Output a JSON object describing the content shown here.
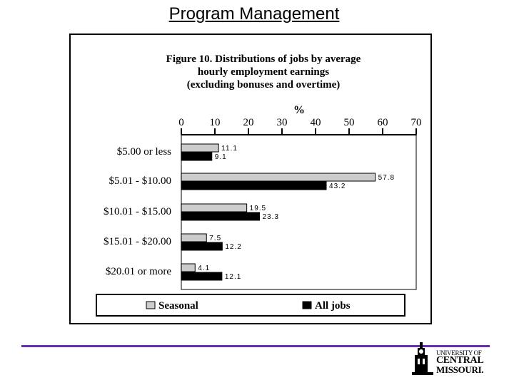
{
  "slide": {
    "title": "Program Management"
  },
  "chart_data": {
    "type": "bar",
    "orientation": "horizontal",
    "title_lines": [
      "Figure 10. Distributions of jobs by average",
      "hourly employment earnings",
      "(excluding bonuses and overtime)"
    ],
    "axis_label": "%",
    "xlim": [
      0,
      70
    ],
    "x_ticks": [
      "0",
      "10",
      "20",
      "30",
      "40",
      "50",
      "60",
      "70"
    ],
    "categories": [
      "$5.00 or less",
      "$5.01 - $10.00",
      "$10.01 - $15.00",
      "$15.01 - $20.00",
      "$20.01 or more"
    ],
    "series": [
      {
        "name": "Seasonal",
        "values": [
          11.1,
          57.8,
          19.5,
          7.5,
          4.1
        ],
        "labels": [
          "11.1",
          "57.8",
          "19.5",
          "7.5",
          "4.1"
        ],
        "color": "#cccccc"
      },
      {
        "name": "All jobs",
        "values": [
          9.1,
          43.2,
          23.3,
          12.2,
          12.1
        ],
        "labels": [
          "9.1",
          "43.2",
          "23.3",
          "12.2",
          "12.1"
        ],
        "color": "#000000"
      }
    ],
    "legend": "bottom",
    "grid": false
  },
  "logo": {
    "line1": "UNIVERSITY OF",
    "line2": "CENTRAL",
    "line3": "MISSOURI."
  }
}
